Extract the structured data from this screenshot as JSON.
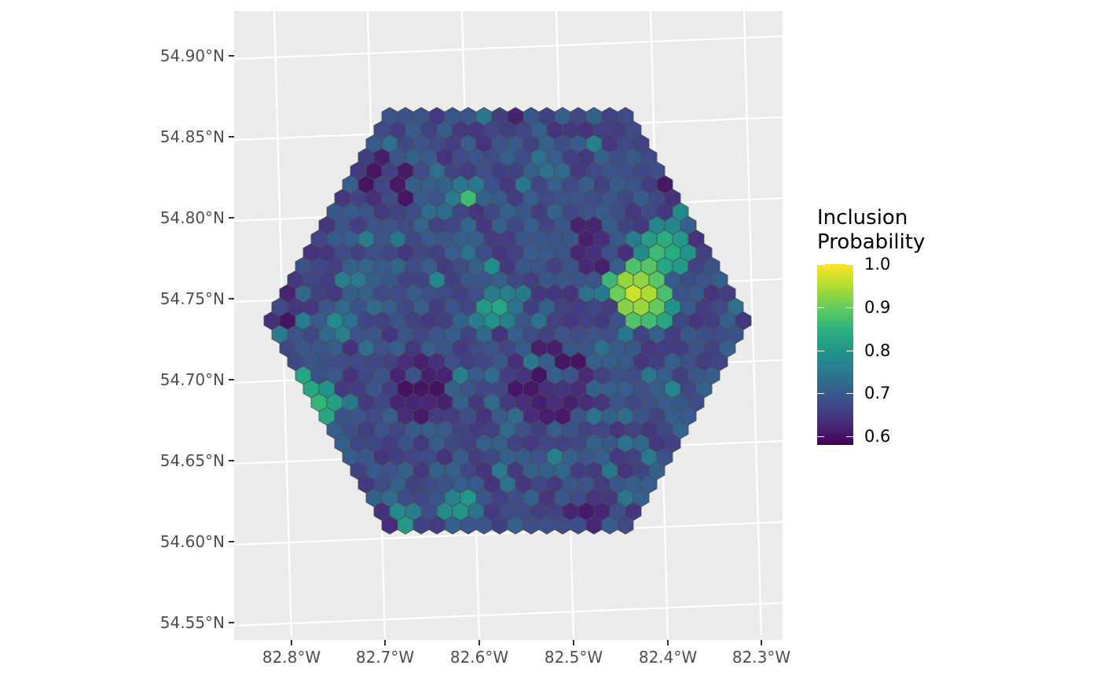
{
  "map": {
    "type": "hexagonal grid choropleth",
    "y_axis_labels": [
      "54.55°N",
      "54.60°N",
      "54.65°N",
      "54.70°N",
      "54.75°N",
      "54.80°N",
      "54.85°N",
      "54.90°N"
    ],
    "x_axis_labels": [
      "82.8°W",
      "82.7°W",
      "82.6°W",
      "82.5°W",
      "82.4°W",
      "82.3°W"
    ],
    "panel_background": "#ebebeb",
    "grid_color": "#ffffff",
    "hex_outline_color": "#4d4d4d"
  },
  "legend": {
    "title_line1": "Inclusion",
    "title_line2": "Probability",
    "ticks": [
      "1.0",
      "0.9",
      "0.8",
      "0.7",
      "0.6"
    ],
    "min": 0.58,
    "max": 1.0,
    "palette": [
      "#440154",
      "#472d7b",
      "#3b528b",
      "#2c728e",
      "#21918c",
      "#28ae80",
      "#5ec962",
      "#addc30",
      "#fde725"
    ]
  }
}
